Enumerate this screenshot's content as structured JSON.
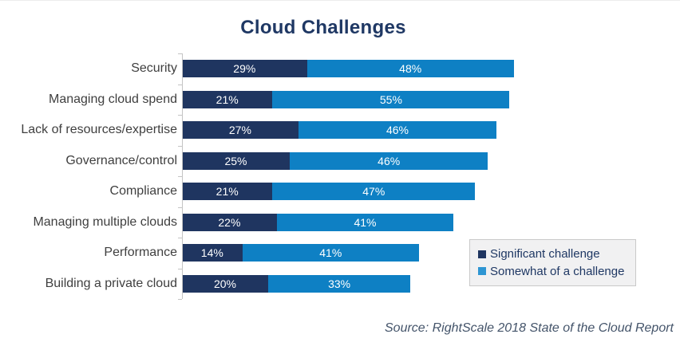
{
  "title": "Cloud Challenges",
  "source": "Source: RightScale 2018 State of the Cloud Report",
  "colors": {
    "significant": "#1F3560",
    "somewhat": "#0E80C4",
    "title_text": "#1F3864",
    "category_text": "#3F3F3F",
    "bar_value_text": "#FFFFFF",
    "axis_line": "#C4C4C4",
    "legend_background": "#F1F1F2",
    "legend_border": "#C9C9C9",
    "legend_text": "#1F3864",
    "source_text": "#44546A"
  },
  "legend": {
    "items": [
      {
        "label": "Significant challenge",
        "color": "#1F3560"
      },
      {
        "label": "Somewhat of a challenge",
        "color": "#2E96D3"
      }
    ]
  },
  "chart_data": {
    "type": "bar",
    "orientation": "horizontal",
    "stacked": true,
    "title": "Cloud Challenges",
    "xlabel": "",
    "ylabel": "",
    "xlim": [
      0,
      100
    ],
    "grid": false,
    "legend_position": "inside-bottom-right",
    "value_suffix": "%",
    "categories": [
      "Security",
      "Managing cloud spend",
      "Lack of resources/expertise",
      "Governance/control",
      "Compliance",
      "Managing multiple clouds",
      "Performance",
      "Building a private cloud"
    ],
    "series": [
      {
        "name": "Significant challenge",
        "color": "#1F3560",
        "values": [
          29,
          21,
          27,
          25,
          21,
          22,
          14,
          20
        ]
      },
      {
        "name": "Somewhat of a challenge",
        "color": "#0E80C4",
        "values": [
          48,
          55,
          46,
          46,
          47,
          41,
          41,
          33
        ]
      }
    ]
  }
}
